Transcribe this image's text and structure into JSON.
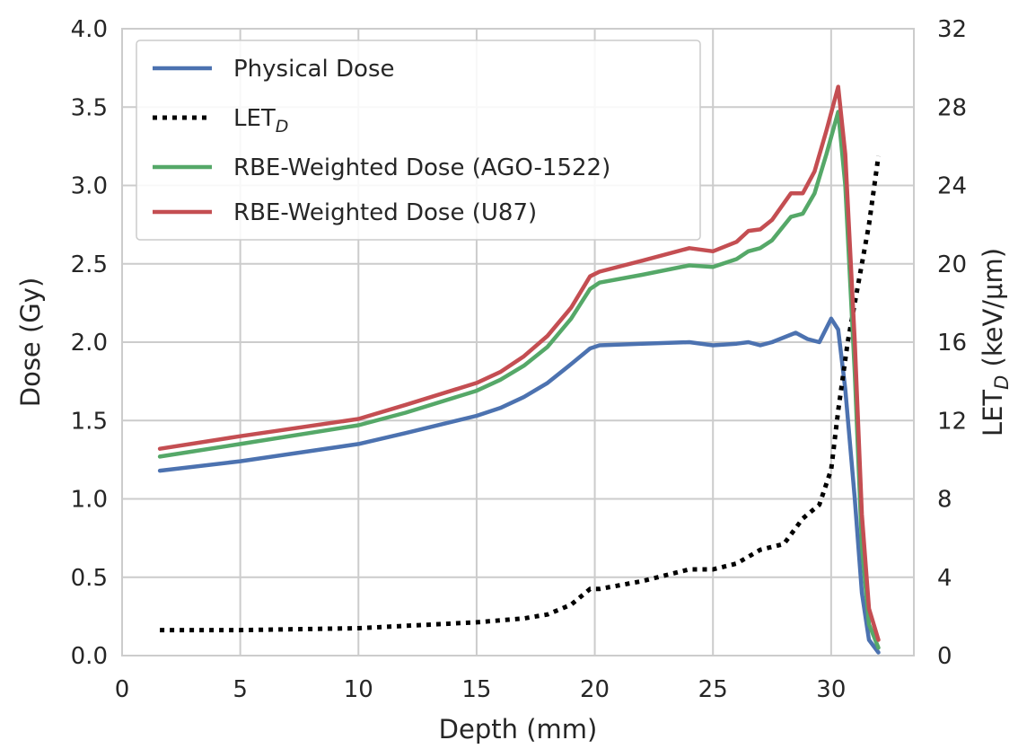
{
  "chart_data": {
    "type": "line",
    "xlabel": "Depth (mm)",
    "ylabel": "Dose (Gy)",
    "y2label": {
      "main": "LET",
      "sub": "D",
      "unit": " (keV/μm)"
    },
    "xlim": [
      0,
      33.5
    ],
    "ylim": [
      0,
      4.0
    ],
    "y2lim": [
      0,
      32
    ],
    "x_ticks": [
      "0",
      "5",
      "10",
      "15",
      "20",
      "25",
      "30"
    ],
    "y_ticks": [
      "0.0",
      "0.5",
      "1.0",
      "1.5",
      "2.0",
      "2.5",
      "3.0",
      "3.5",
      "4.0"
    ],
    "y2_ticks": [
      "0",
      "4",
      "8",
      "12",
      "16",
      "20",
      "24",
      "28",
      "32"
    ],
    "grid": true,
    "legend_position": "top-left",
    "series": [
      {
        "name": "Physical Dose",
        "legend_label": "Physical Dose",
        "color": "#4c72b0",
        "style": "solid",
        "axis": "left",
        "x": [
          1.6,
          5,
          10,
          12,
          15,
          16,
          17,
          18,
          19,
          19.8,
          20.2,
          22,
          24,
          25,
          26,
          26.5,
          27,
          27.5,
          28.5,
          29,
          29.5,
          30,
          30.3,
          30.6,
          31,
          31.3,
          31.6,
          32.0
        ],
        "y": [
          1.18,
          1.24,
          1.35,
          1.42,
          1.53,
          1.58,
          1.65,
          1.74,
          1.86,
          1.96,
          1.98,
          1.99,
          2.0,
          1.98,
          1.99,
          2.0,
          1.98,
          2.0,
          2.06,
          2.02,
          2.0,
          2.15,
          2.08,
          1.7,
          1.0,
          0.4,
          0.1,
          0.02
        ]
      },
      {
        "name": "LET_D",
        "legend_label": {
          "main": "LET",
          "sub": "D"
        },
        "color": "#000000",
        "style": "dotted",
        "axis": "right",
        "x": [
          1.6,
          5,
          10,
          15,
          17,
          18,
          19,
          19.8,
          20.2,
          22,
          24,
          25,
          26,
          27,
          28,
          28.8,
          29.5,
          30,
          30.3,
          30.7,
          31,
          31.3,
          31.6,
          32.0
        ],
        "y": [
          1.3,
          1.3,
          1.4,
          1.7,
          1.9,
          2.1,
          2.6,
          3.4,
          3.4,
          3.8,
          4.4,
          4.4,
          4.7,
          5.4,
          5.7,
          7.0,
          7.7,
          9.5,
          12.5,
          16.0,
          18.0,
          20.0,
          22.0,
          25.5
        ]
      },
      {
        "name": "RBE-Weighted Dose (AGO-1522)",
        "legend_label": "RBE-Weighted Dose (AGO-1522)",
        "color": "#55a868",
        "style": "solid",
        "axis": "left",
        "x": [
          1.6,
          5,
          10,
          12,
          15,
          16,
          17,
          18,
          19,
          19.8,
          20.2,
          22,
          24,
          25,
          26,
          26.5,
          27,
          27.5,
          28.3,
          28.8,
          29.3,
          29.8,
          30.3,
          30.6,
          31.0,
          31.3,
          31.6,
          32.0
        ],
        "y": [
          1.27,
          1.35,
          1.47,
          1.55,
          1.69,
          1.76,
          1.85,
          1.97,
          2.15,
          2.34,
          2.38,
          2.43,
          2.49,
          2.48,
          2.53,
          2.58,
          2.6,
          2.65,
          2.8,
          2.82,
          2.95,
          3.2,
          3.47,
          3.0,
          1.8,
          0.7,
          0.2,
          0.05
        ]
      },
      {
        "name": "RBE-Weighted Dose (U87)",
        "legend_label": "RBE-Weighted Dose (U87)",
        "color": "#c44e52",
        "style": "solid",
        "axis": "left",
        "x": [
          1.6,
          5,
          10,
          12,
          15,
          16,
          17,
          18,
          19,
          19.8,
          20.2,
          22,
          24,
          25,
          26,
          26.5,
          27,
          27.5,
          28.3,
          28.8,
          29.3,
          29.8,
          30.3,
          30.6,
          31.0,
          31.3,
          31.6,
          32.0
        ],
        "y": [
          1.32,
          1.4,
          1.51,
          1.6,
          1.74,
          1.81,
          1.91,
          2.04,
          2.22,
          2.42,
          2.45,
          2.52,
          2.6,
          2.58,
          2.64,
          2.71,
          2.72,
          2.78,
          2.95,
          2.95,
          3.09,
          3.35,
          3.63,
          3.2,
          2.0,
          0.9,
          0.3,
          0.1
        ]
      }
    ]
  }
}
